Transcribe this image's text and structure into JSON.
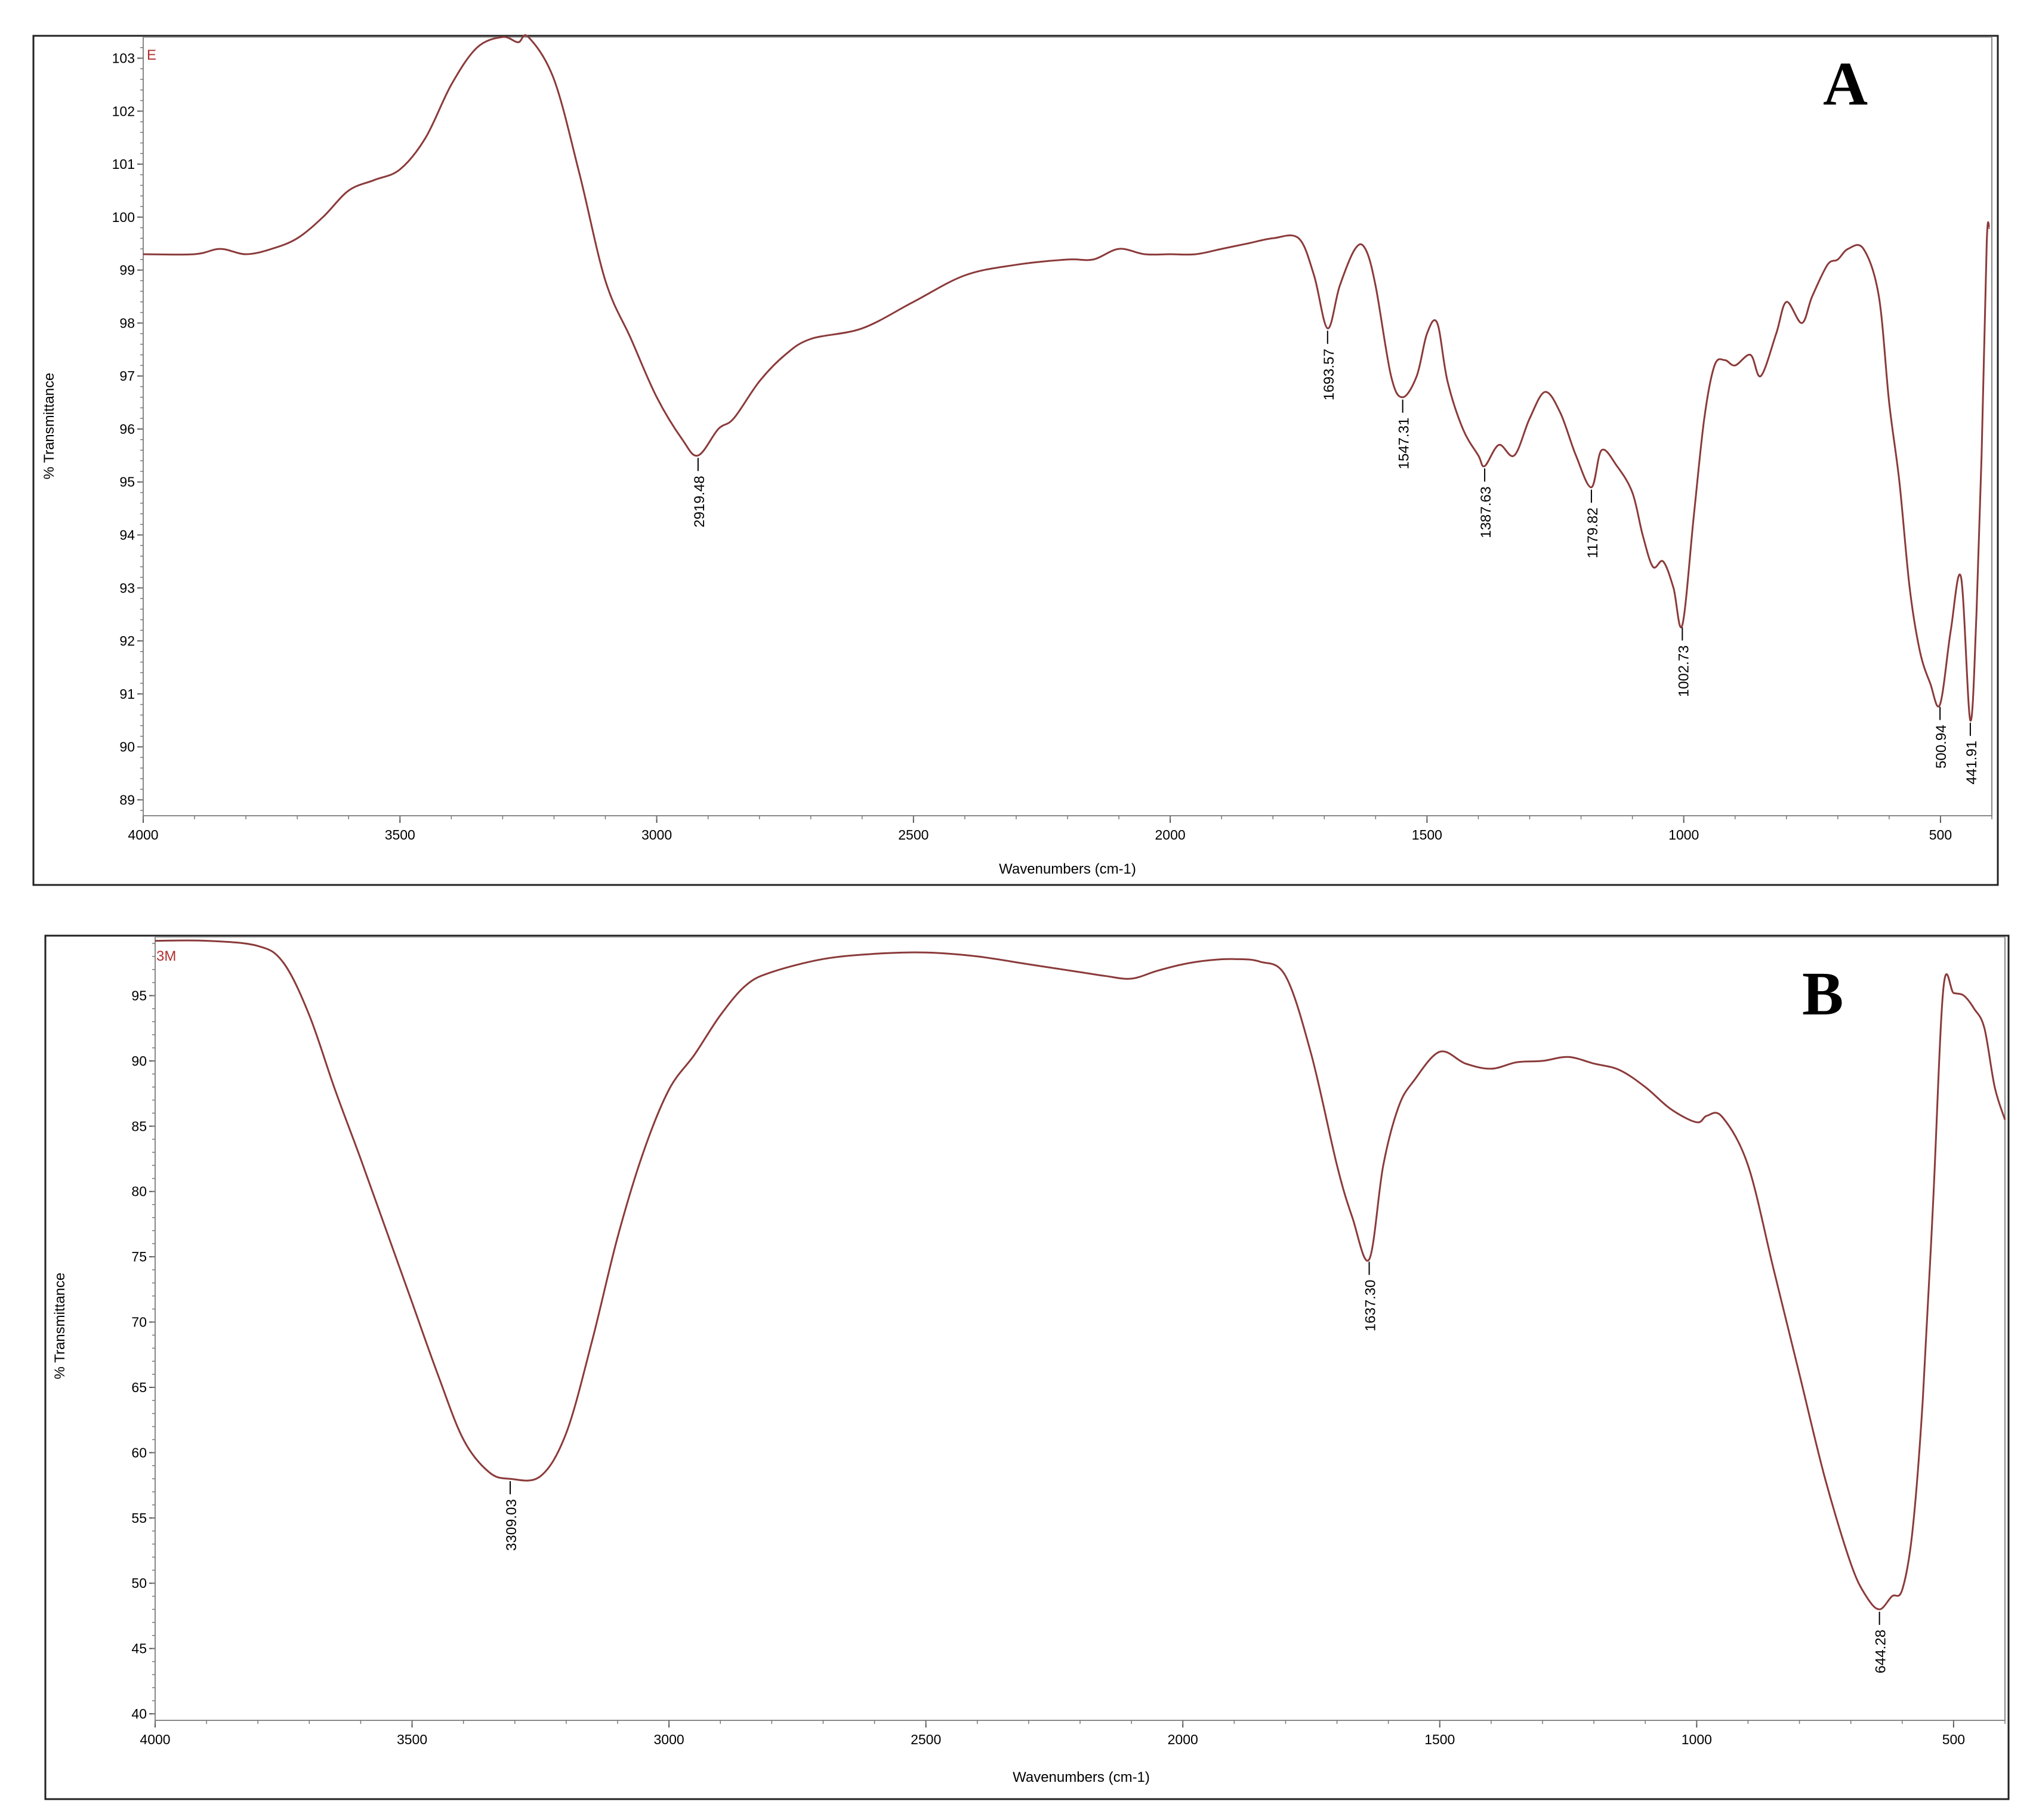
{
  "chart_data": [
    {
      "type": "line",
      "panel_label": "A",
      "sample_label": "E",
      "xlabel": "Wavenumbers (cm-1)",
      "ylabel": "% Transmittance",
      "xlim": [
        4000,
        400
      ],
      "ylim": [
        88.7,
        103.4
      ],
      "x_reversed": true,
      "grid": false,
      "xticks": [
        4000,
        3500,
        3000,
        2500,
        2000,
        1500,
        1000,
        500
      ],
      "yticks": [
        89,
        90,
        91,
        92,
        93,
        94,
        95,
        96,
        97,
        98,
        99,
        100,
        101,
        102,
        103
      ],
      "line_color": "#8b3a3a",
      "series": [
        {
          "x": [
            4000,
            3900,
            3850,
            3800,
            3750,
            3700,
            3650,
            3600,
            3550,
            3500,
            3450,
            3400,
            3350,
            3300,
            3270,
            3250,
            3200,
            3150,
            3100,
            3050,
            3000,
            2950,
            2919.48,
            2880,
            2850,
            2800,
            2750,
            2700,
            2600,
            2500,
            2400,
            2300,
            2200,
            2150,
            2100,
            2050,
            2000,
            1950,
            1900,
            1850,
            1800,
            1750,
            1720,
            1693.57,
            1670,
            1640,
            1620,
            1600,
            1570,
            1547.31,
            1520,
            1500,
            1480,
            1460,
            1430,
            1400,
            1387.63,
            1360,
            1330,
            1300,
            1270,
            1240,
            1210,
            1179.82,
            1160,
            1130,
            1100,
            1080,
            1060,
            1040,
            1020,
            1002.73,
            980,
            960,
            940,
            920,
            900,
            870,
            850,
            820,
            800,
            770,
            750,
            720,
            700,
            680,
            650,
            620,
            600,
            580,
            560,
            540,
            520,
            500.94,
            480,
            460,
            441.91,
            430,
            420,
            410,
            405
          ],
          "y": [
            99.3,
            99.3,
            99.4,
            99.3,
            99.4,
            99.6,
            100.0,
            100.5,
            100.7,
            100.9,
            101.5,
            102.5,
            103.2,
            103.4,
            103.3,
            103.4,
            102.6,
            100.8,
            98.8,
            97.7,
            96.6,
            95.8,
            95.5,
            96.0,
            96.2,
            96.9,
            97.4,
            97.7,
            97.9,
            98.4,
            98.9,
            99.1,
            99.2,
            99.2,
            99.4,
            99.3,
            99.3,
            99.3,
            99.4,
            99.5,
            99.6,
            99.6,
            98.9,
            97.9,
            98.7,
            99.4,
            99.4,
            98.7,
            97.0,
            96.6,
            97.0,
            97.8,
            98.0,
            96.9,
            96.0,
            95.5,
            95.3,
            95.7,
            95.5,
            96.2,
            96.7,
            96.3,
            95.5,
            94.9,
            95.6,
            95.3,
            94.8,
            94.0,
            93.4,
            93.5,
            93.0,
            92.3,
            94.4,
            96.2,
            97.2,
            97.3,
            97.2,
            97.4,
            97.0,
            97.8,
            98.4,
            98.0,
            98.5,
            99.1,
            99.2,
            99.4,
            99.4,
            98.5,
            96.5,
            95.0,
            93.0,
            91.8,
            91.2,
            90.8,
            92.2,
            93.2,
            90.5,
            92.5,
            95.5,
            99.5,
            99.8
          ]
        }
      ],
      "peaks": [
        "2919.48",
        "1693.57",
        "1547.31",
        "1387.63",
        "1179.82",
        "1002.73",
        "500.94",
        "441.91"
      ],
      "peak_values": [
        [
          2919.48,
          95.5
        ],
        [
          1693.57,
          97.9
        ],
        [
          1547.31,
          96.6
        ],
        [
          1387.63,
          95.3
        ],
        [
          1179.82,
          94.9
        ],
        [
          1002.73,
          92.3
        ],
        [
          500.94,
          90.8
        ],
        [
          441.91,
          90.5
        ]
      ]
    },
    {
      "type": "line",
      "panel_label": "B",
      "sample_label": "3M",
      "xlabel": "Wavenumbers (cm-1)",
      "ylabel": "% Transmittance",
      "xlim": [
        4000,
        400
      ],
      "ylim": [
        39.5,
        99.5
      ],
      "x_reversed": true,
      "grid": false,
      "xticks": [
        4000,
        3500,
        3000,
        2500,
        2000,
        1500,
        1000,
        500
      ],
      "yticks": [
        40,
        45,
        50,
        55,
        60,
        65,
        70,
        75,
        80,
        85,
        90,
        95
      ],
      "line_color": "#8b3a3a",
      "series": [
        {
          "x": [
            4000,
            3900,
            3800,
            3750,
            3700,
            3650,
            3600,
            3550,
            3500,
            3450,
            3400,
            3350,
            3309.03,
            3250,
            3200,
            3150,
            3100,
            3050,
            3000,
            2950,
            2900,
            2850,
            2800,
            2700,
            2600,
            2500,
            2400,
            2300,
            2200,
            2150,
            2100,
            2050,
            2000,
            1950,
            1900,
            1850,
            1800,
            1750,
            1700,
            1670,
            1637.3,
            1610,
            1580,
            1550,
            1500,
            1450,
            1400,
            1350,
            1300,
            1250,
            1200,
            1150,
            1100,
            1050,
            1000,
            980,
            950,
            900,
            850,
            800,
            750,
            700,
            670,
            644.28,
            620,
            600,
            580,
            560,
            540,
            520,
            500,
            480,
            460,
            440,
            420,
            400
          ],
          "y": [
            99.2,
            99.2,
            98.8,
            97.5,
            93.5,
            87.8,
            82.5,
            77.0,
            71.5,
            66.0,
            61.0,
            58.5,
            58.0,
            58.2,
            61.5,
            68.5,
            76.5,
            83.0,
            87.8,
            90.5,
            93.5,
            95.8,
            96.8,
            97.8,
            98.2,
            98.3,
            98.0,
            97.4,
            96.8,
            96.5,
            96.3,
            96.9,
            97.4,
            97.7,
            97.8,
            97.6,
            96.5,
            90.5,
            82.0,
            78.0,
            74.8,
            82.0,
            86.5,
            88.5,
            90.7,
            89.8,
            89.4,
            89.9,
            90.0,
            90.3,
            89.8,
            89.3,
            88.0,
            86.3,
            85.3,
            85.8,
            85.7,
            82.0,
            74.0,
            66.0,
            58.0,
            51.5,
            49.0,
            48.0,
            49.0,
            49.5,
            54.0,
            64.0,
            79.0,
            95.5,
            95.2,
            95.0,
            94.0,
            92.5,
            88.0,
            85.5
          ]
        }
      ],
      "peaks": [
        "3309.03",
        "1637.30",
        "644.28"
      ],
      "peak_values": [
        [
          3309.03,
          58.0
        ],
        [
          1637.3,
          74.8
        ],
        [
          644.28,
          48.0
        ]
      ]
    }
  ]
}
